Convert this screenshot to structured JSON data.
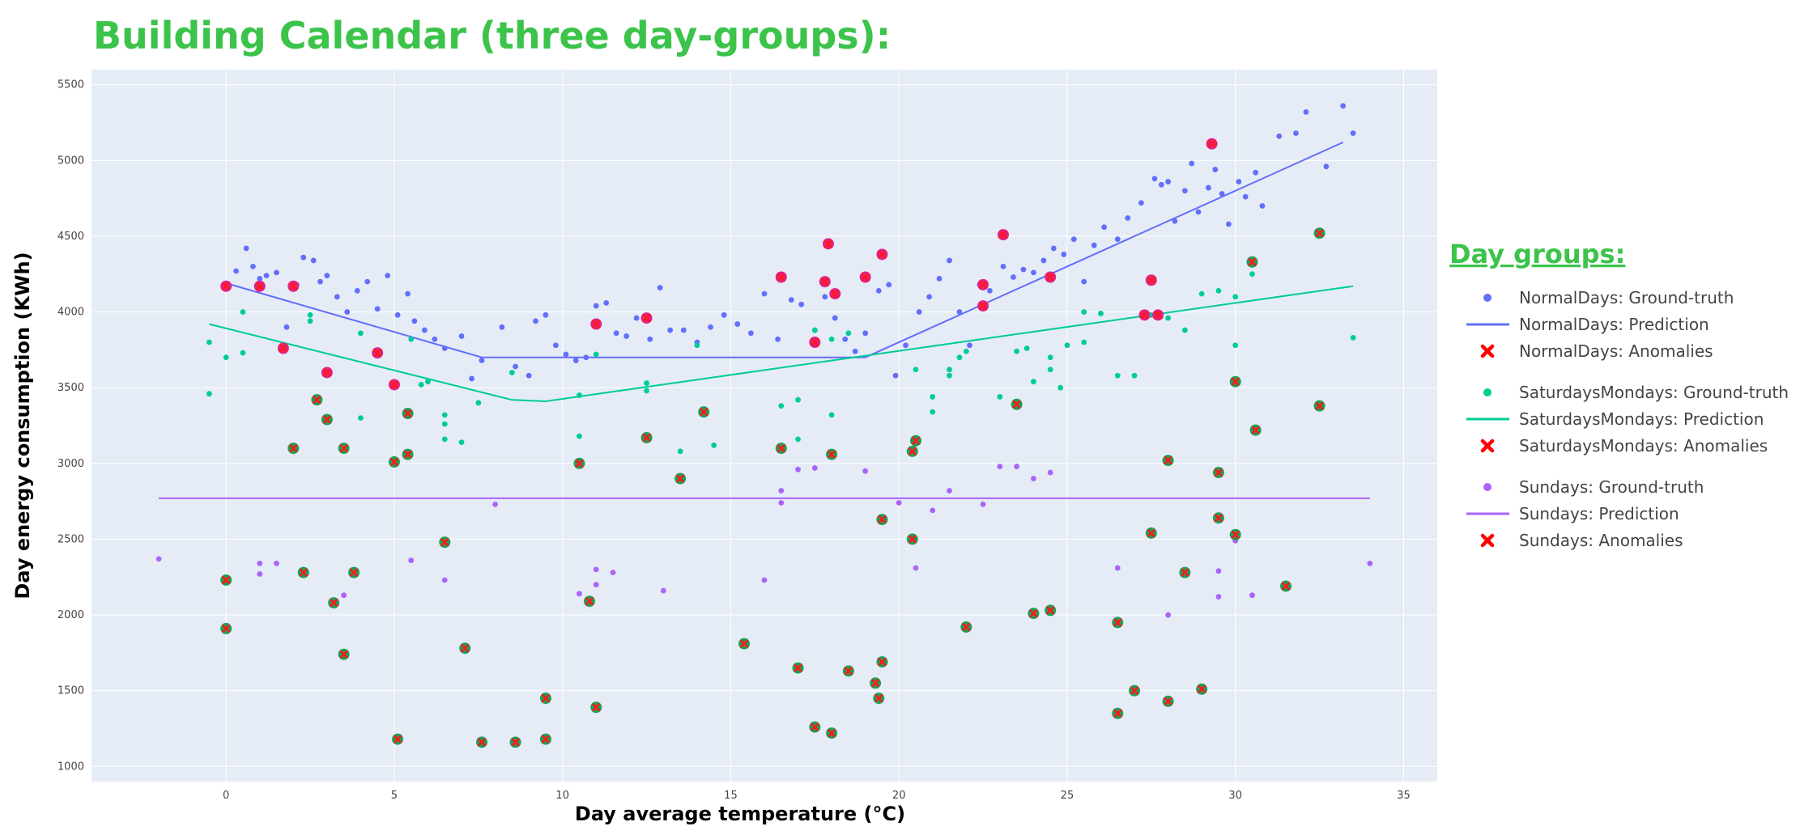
{
  "chart_data": {
    "type": "scatter",
    "title": "Building Calendar (three day-groups):",
    "xlabel": "Day average temperature (°C)",
    "ylabel": "Day energy consumption (KWh)",
    "xlim": [
      -4,
      36
    ],
    "ylim": [
      900,
      5600
    ],
    "xticks": [
      0,
      5,
      10,
      15,
      20,
      25,
      30,
      35
    ],
    "yticks": [
      1000,
      1500,
      2000,
      2500,
      3000,
      3500,
      4000,
      4500,
      5000,
      5500
    ],
    "grid": true,
    "legend_title": "Day groups:",
    "legend_position": "right",
    "colors": {
      "normal": "#636efa",
      "satmon": "#00cc96",
      "sunday": "#ab63fa",
      "anomaly": "#ff0000",
      "title": "#3cc34a",
      "plot_bg": "#e5ecf6"
    },
    "series": [
      {
        "name": "NormalDays: Ground-truth",
        "kind": "points",
        "color": "#636efa",
        "points": [
          [
            0.3,
            4270
          ],
          [
            0.6,
            4420
          ],
          [
            0.8,
            4300
          ],
          [
            1.0,
            4220
          ],
          [
            1.2,
            4240
          ],
          [
            1.5,
            4260
          ],
          [
            1.8,
            3900
          ],
          [
            2.1,
            4180
          ],
          [
            2.3,
            4360
          ],
          [
            2.6,
            4340
          ],
          [
            2.8,
            4200
          ],
          [
            3.0,
            4240
          ],
          [
            3.3,
            4100
          ],
          [
            3.6,
            4000
          ],
          [
            3.9,
            4140
          ],
          [
            4.2,
            4200
          ],
          [
            4.5,
            4020
          ],
          [
            4.8,
            4240
          ],
          [
            5.1,
            3980
          ],
          [
            5.4,
            4120
          ],
          [
            5.6,
            3940
          ],
          [
            5.9,
            3880
          ],
          [
            6.2,
            3820
          ],
          [
            6.5,
            3760
          ],
          [
            7.0,
            3840
          ],
          [
            7.3,
            3560
          ],
          [
            7.6,
            3680
          ],
          [
            8.2,
            3900
          ],
          [
            8.6,
            3640
          ],
          [
            9.0,
            3580
          ],
          [
            9.2,
            3940
          ],
          [
            9.5,
            3980
          ],
          [
            9.8,
            3780
          ],
          [
            10.1,
            3720
          ],
          [
            10.4,
            3680
          ],
          [
            10.7,
            3700
          ],
          [
            11.0,
            4040
          ],
          [
            11.3,
            4060
          ],
          [
            11.6,
            3860
          ],
          [
            11.9,
            3840
          ],
          [
            12.2,
            3960
          ],
          [
            12.6,
            3820
          ],
          [
            12.9,
            4160
          ],
          [
            13.2,
            3880
          ],
          [
            13.6,
            3880
          ],
          [
            14.0,
            3800
          ],
          [
            14.4,
            3900
          ],
          [
            14.8,
            3980
          ],
          [
            15.2,
            3920
          ],
          [
            15.6,
            3860
          ],
          [
            16.0,
            4120
          ],
          [
            16.4,
            3820
          ],
          [
            16.8,
            4080
          ],
          [
            17.1,
            4050
          ],
          [
            17.5,
            3880
          ],
          [
            17.8,
            4100
          ],
          [
            18.1,
            3960
          ],
          [
            18.4,
            3820
          ],
          [
            18.7,
            3740
          ],
          [
            19.0,
            3860
          ],
          [
            19.4,
            4140
          ],
          [
            19.7,
            4180
          ],
          [
            19.9,
            3580
          ],
          [
            20.2,
            3780
          ],
          [
            20.6,
            4000
          ],
          [
            20.9,
            4100
          ],
          [
            21.2,
            4220
          ],
          [
            21.5,
            4340
          ],
          [
            21.8,
            4000
          ],
          [
            22.1,
            3780
          ],
          [
            22.4,
            4180
          ],
          [
            22.7,
            4140
          ],
          [
            23.1,
            4300
          ],
          [
            23.4,
            4230
          ],
          [
            23.7,
            4280
          ],
          [
            24.0,
            4260
          ],
          [
            24.3,
            4340
          ],
          [
            24.6,
            4420
          ],
          [
            24.9,
            4380
          ],
          [
            25.2,
            4480
          ],
          [
            25.5,
            4200
          ],
          [
            25.8,
            4440
          ],
          [
            26.1,
            4560
          ],
          [
            26.5,
            4480
          ],
          [
            26.8,
            4620
          ],
          [
            27.2,
            4720
          ],
          [
            27.6,
            4880
          ],
          [
            27.8,
            4840
          ],
          [
            28.0,
            4860
          ],
          [
            28.2,
            4600
          ],
          [
            28.5,
            4800
          ],
          [
            28.7,
            4980
          ],
          [
            28.9,
            4660
          ],
          [
            29.2,
            4820
          ],
          [
            29.4,
            4940
          ],
          [
            29.6,
            4780
          ],
          [
            29.8,
            4580
          ],
          [
            30.1,
            4860
          ],
          [
            30.3,
            4760
          ],
          [
            30.6,
            4920
          ],
          [
            30.8,
            4700
          ],
          [
            31.3,
            5160
          ],
          [
            31.8,
            5180
          ],
          [
            32.1,
            5320
          ],
          [
            32.7,
            4960
          ],
          [
            33.2,
            5360
          ],
          [
            33.5,
            5180
          ]
        ]
      },
      {
        "name": "NormalDays: Prediction",
        "kind": "line",
        "color": "#636efa",
        "points": [
          [
            0,
            4190
          ],
          [
            7.6,
            3700
          ],
          [
            19.0,
            3700
          ],
          [
            33.2,
            5120
          ]
        ]
      },
      {
        "name": "NormalDays: Anomalies",
        "kind": "anomaly",
        "color": "#ff0000",
        "points": [
          [
            0,
            4170
          ],
          [
            1.0,
            4170
          ],
          [
            2.0,
            4170
          ],
          [
            1.7,
            3760
          ],
          [
            3.0,
            3600
          ],
          [
            4.5,
            3730
          ],
          [
            5.0,
            3520
          ],
          [
            12.5,
            3960
          ],
          [
            11.0,
            3920
          ],
          [
            16.5,
            4230
          ],
          [
            17.8,
            4200
          ],
          [
            18.1,
            4120
          ],
          [
            17.5,
            3800
          ],
          [
            17.9,
            4450
          ],
          [
            19.0,
            4230
          ],
          [
            19.5,
            4380
          ],
          [
            22.5,
            4040
          ],
          [
            23.1,
            4510
          ],
          [
            22.5,
            4180
          ],
          [
            24.5,
            4230
          ],
          [
            27.3,
            3980
          ],
          [
            27.7,
            3980
          ],
          [
            27.5,
            4210
          ],
          [
            29.3,
            5110
          ]
        ]
      },
      {
        "name": "SaturdaysMondays: Ground-truth",
        "kind": "points",
        "color": "#00cc96",
        "points": [
          [
            -0.5,
            3800
          ],
          [
            -0.5,
            3460
          ],
          [
            0,
            3700
          ],
          [
            0.5,
            4000
          ],
          [
            0.5,
            3730
          ],
          [
            2.5,
            3980
          ],
          [
            2.5,
            3940
          ],
          [
            4.0,
            3860
          ],
          [
            4.0,
            3300
          ],
          [
            5.5,
            3820
          ],
          [
            5.8,
            3520
          ],
          [
            6.0,
            3540
          ],
          [
            6.5,
            3320
          ],
          [
            6.5,
            3260
          ],
          [
            6.5,
            3160
          ],
          [
            7.0,
            3140
          ],
          [
            7.5,
            3400
          ],
          [
            8.5,
            3600
          ],
          [
            10.5,
            3450
          ],
          [
            10.5,
            3180
          ],
          [
            11.0,
            3720
          ],
          [
            12.5,
            3530
          ],
          [
            12.5,
            3480
          ],
          [
            13.5,
            3080
          ],
          [
            14.0,
            3780
          ],
          [
            14.5,
            3120
          ],
          [
            16.5,
            3380
          ],
          [
            17.0,
            3420
          ],
          [
            17.0,
            3160
          ],
          [
            17.5,
            3880
          ],
          [
            18.0,
            3320
          ],
          [
            18.0,
            3820
          ],
          [
            18.5,
            3860
          ],
          [
            20.5,
            3620
          ],
          [
            21.0,
            3440
          ],
          [
            21.0,
            3340
          ],
          [
            21.5,
            3580
          ],
          [
            21.5,
            3620
          ],
          [
            21.8,
            3700
          ],
          [
            22.0,
            3740
          ],
          [
            23.0,
            3440
          ],
          [
            23.5,
            3740
          ],
          [
            23.8,
            3760
          ],
          [
            24.0,
            3540
          ],
          [
            24.5,
            3700
          ],
          [
            24.5,
            3620
          ],
          [
            24.8,
            3500
          ],
          [
            25.0,
            3780
          ],
          [
            25.5,
            3800
          ],
          [
            25.5,
            4000
          ],
          [
            26.0,
            3990
          ],
          [
            26.5,
            3580
          ],
          [
            27.0,
            3580
          ],
          [
            27.5,
            3980
          ],
          [
            28.0,
            3960
          ],
          [
            28.5,
            3880
          ],
          [
            29.0,
            4120
          ],
          [
            29.5,
            4140
          ],
          [
            30.0,
            3780
          ],
          [
            30.0,
            4100
          ],
          [
            30.5,
            4250
          ],
          [
            33.5,
            3830
          ]
        ]
      },
      {
        "name": "SaturdaysMondays: Prediction",
        "kind": "line",
        "color": "#00cc96",
        "points": [
          [
            -0.5,
            3920
          ],
          [
            8.5,
            3420
          ],
          [
            9.5,
            3410
          ],
          [
            33.5,
            4170
          ]
        ]
      },
      {
        "name": "SaturdaysMondays: Anomalies",
        "kind": "anomaly",
        "color": "#ff0000",
        "points": [
          [
            2.0,
            3100
          ],
          [
            2.7,
            3420
          ],
          [
            3.0,
            3290
          ],
          [
            3.5,
            3100
          ],
          [
            5.0,
            3010
          ],
          [
            5.4,
            3060
          ],
          [
            5.4,
            3330
          ],
          [
            10.5,
            3000
          ],
          [
            12.5,
            3170
          ],
          [
            13.5,
            2900
          ],
          [
            14.2,
            3340
          ],
          [
            16.5,
            3100
          ],
          [
            18.0,
            3060
          ],
          [
            20.4,
            3080
          ],
          [
            20.5,
            3150
          ],
          [
            23.5,
            3390
          ],
          [
            28.0,
            3020
          ],
          [
            29.5,
            2940
          ],
          [
            30.0,
            3540
          ],
          [
            30.6,
            3220
          ],
          [
            30.5,
            4330
          ],
          [
            32.5,
            4520
          ],
          [
            32.5,
            3380
          ]
        ]
      },
      {
        "name": "Sundays: Ground-truth",
        "kind": "points",
        "color": "#ab63fa",
        "points": [
          [
            -2,
            2370
          ],
          [
            1.0,
            2340
          ],
          [
            1.0,
            2270
          ],
          [
            1.5,
            2340
          ],
          [
            3.5,
            2130
          ],
          [
            5.5,
            2360
          ],
          [
            6.5,
            2230
          ],
          [
            8.0,
            2730
          ],
          [
            10.5,
            2140
          ],
          [
            11.0,
            2300
          ],
          [
            11.0,
            2200
          ],
          [
            11.5,
            2280
          ],
          [
            13.0,
            2160
          ],
          [
            16.0,
            2230
          ],
          [
            16.5,
            2820
          ],
          [
            16.5,
            2740
          ],
          [
            17.0,
            2960
          ],
          [
            17.5,
            2970
          ],
          [
            19.0,
            2950
          ],
          [
            20.0,
            2740
          ],
          [
            20.5,
            2310
          ],
          [
            21.0,
            2690
          ],
          [
            21.5,
            2820
          ],
          [
            22.5,
            2730
          ],
          [
            23.0,
            2980
          ],
          [
            23.5,
            2980
          ],
          [
            24.0,
            2900
          ],
          [
            24.5,
            2940
          ],
          [
            26.5,
            2310
          ],
          [
            28.0,
            2000
          ],
          [
            29.5,
            2290
          ],
          [
            29.5,
            2120
          ],
          [
            30.0,
            2490
          ],
          [
            30.5,
            2130
          ],
          [
            34.0,
            2340
          ]
        ]
      },
      {
        "name": "Sundays: Prediction",
        "kind": "line",
        "color": "#ab63fa",
        "points": [
          [
            -2,
            2770
          ],
          [
            34,
            2770
          ]
        ]
      },
      {
        "name": "Sundays: Anomalies",
        "kind": "anomaly",
        "color": "#ff0000",
        "points": [
          [
            0,
            2230
          ],
          [
            0,
            1910
          ],
          [
            2.3,
            2280
          ],
          [
            3.2,
            2080
          ],
          [
            3.5,
            1740
          ],
          [
            3.8,
            2280
          ],
          [
            5.1,
            1180
          ],
          [
            6.5,
            2480
          ],
          [
            7.1,
            1780
          ],
          [
            7.6,
            1160
          ],
          [
            8.6,
            1160
          ],
          [
            9.5,
            1450
          ],
          [
            9.5,
            1180
          ],
          [
            10.8,
            2090
          ],
          [
            11.0,
            1390
          ],
          [
            15.4,
            1810
          ],
          [
            17.0,
            1650
          ],
          [
            17.5,
            1260
          ],
          [
            18.0,
            1220
          ],
          [
            18.5,
            1630
          ],
          [
            19.3,
            1550
          ],
          [
            19.4,
            1450
          ],
          [
            19.5,
            1690
          ],
          [
            19.5,
            2630
          ],
          [
            20.4,
            2500
          ],
          [
            22.0,
            1920
          ],
          [
            24.0,
            2010
          ],
          [
            24.5,
            2030
          ],
          [
            26.5,
            1950
          ],
          [
            26.5,
            1350
          ],
          [
            27.0,
            1500
          ],
          [
            27.5,
            2540
          ],
          [
            28.0,
            1430
          ],
          [
            28.5,
            2280
          ],
          [
            29.0,
            1510
          ],
          [
            29.5,
            2640
          ],
          [
            30.0,
            2530
          ],
          [
            31.5,
            2190
          ]
        ]
      }
    ]
  }
}
